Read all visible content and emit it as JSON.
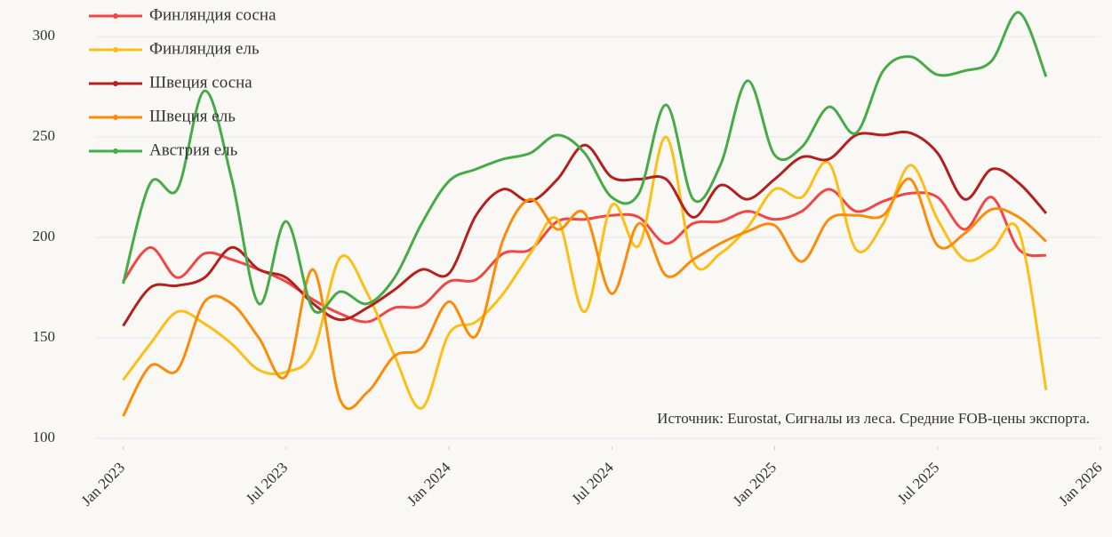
{
  "chart_data": {
    "type": "line",
    "annotation": "Источник: Eurostat, Сигналы из леса. Средние FOB-цены экспорта.",
    "x": [
      "2023-01",
      "2023-02",
      "2023-03",
      "2023-04",
      "2023-05",
      "2023-06",
      "2023-07",
      "2023-08",
      "2023-09",
      "2023-10",
      "2023-11",
      "2023-12",
      "2024-01",
      "2024-02",
      "2024-03",
      "2024-04",
      "2024-05",
      "2024-06",
      "2024-07",
      "2024-08",
      "2024-09",
      "2024-10",
      "2024-11",
      "2024-12",
      "2025-01",
      "2025-02",
      "2025-03",
      "2025-04",
      "2025-05",
      "2025-06",
      "2025-07",
      "2025-08",
      "2025-09",
      "2025-10",
      "2025-11"
    ],
    "series": [
      {
        "name": "Финляндия сосна",
        "color": "#f04646",
        "values": [
          178,
          195,
          180,
          192,
          189,
          184,
          178,
          169,
          162,
          158,
          165,
          166,
          178,
          179,
          192,
          194,
          208,
          209,
          211,
          210,
          197,
          207,
          208,
          213,
          209,
          213,
          224,
          213,
          218,
          222,
          220,
          204,
          220,
          194,
          191
        ]
      },
      {
        "name": "Финляндия ель",
        "color": "#fbbf16",
        "values": [
          129,
          147,
          163,
          157,
          147,
          134,
          133,
          143,
          190,
          172,
          141,
          115,
          152,
          158,
          172,
          192,
          209,
          163,
          216,
          196,
          250,
          188,
          192,
          205,
          224,
          220,
          237,
          194,
          207,
          236,
          209,
          189,
          194,
          203,
          124
        ]
      },
      {
        "name": "Швеция сосна",
        "color": "#b3201e",
        "values": [
          156,
          175,
          176,
          180,
          195,
          184,
          180,
          167,
          159,
          165,
          174,
          184,
          182,
          211,
          224,
          218,
          229,
          246,
          230,
          229,
          229,
          210,
          226,
          219,
          229,
          240,
          239,
          251,
          251,
          252,
          242,
          219,
          234,
          227,
          212
        ]
      },
      {
        "name": "Швеция ель",
        "color": "#fb8c0a",
        "values": [
          111,
          136,
          134,
          168,
          167,
          150,
          131,
          184,
          119,
          123,
          141,
          145,
          168,
          151,
          199,
          219,
          204,
          212,
          172,
          207,
          181,
          189,
          197,
          203,
          206,
          188,
          209,
          211,
          211,
          229,
          196,
          202,
          214,
          210,
          198
        ]
      },
      {
        "name": "Австрия ель",
        "color": "#46ab46",
        "values": [
          177,
          227,
          224,
          273,
          229,
          167,
          208,
          164,
          173,
          167,
          180,
          207,
          228,
          234,
          239,
          242,
          251,
          242,
          220,
          222,
          266,
          219,
          236,
          278,
          241,
          245,
          265,
          252,
          283,
          290,
          281,
          283,
          288,
          312,
          280
        ]
      }
    ],
    "xlim": [
      "2022-12",
      "2026-01"
    ],
    "xticks": [
      {
        "value": "2023-01",
        "label": "Jan 2023"
      },
      {
        "value": "2023-07",
        "label": "Jul 2023"
      },
      {
        "value": "2024-01",
        "label": "Jan 2024"
      },
      {
        "value": "2024-07",
        "label": "Jul 2024"
      },
      {
        "value": "2025-01",
        "label": "Jan 2025"
      },
      {
        "value": "2025-07",
        "label": "Jul 2025"
      },
      {
        "value": "2026-01",
        "label": "Jan 2026"
      }
    ],
    "ylim": [
      96,
      316
    ],
    "yticks": [
      100,
      150,
      200,
      250,
      300
    ],
    "grid": true,
    "legend": "top-left"
  }
}
